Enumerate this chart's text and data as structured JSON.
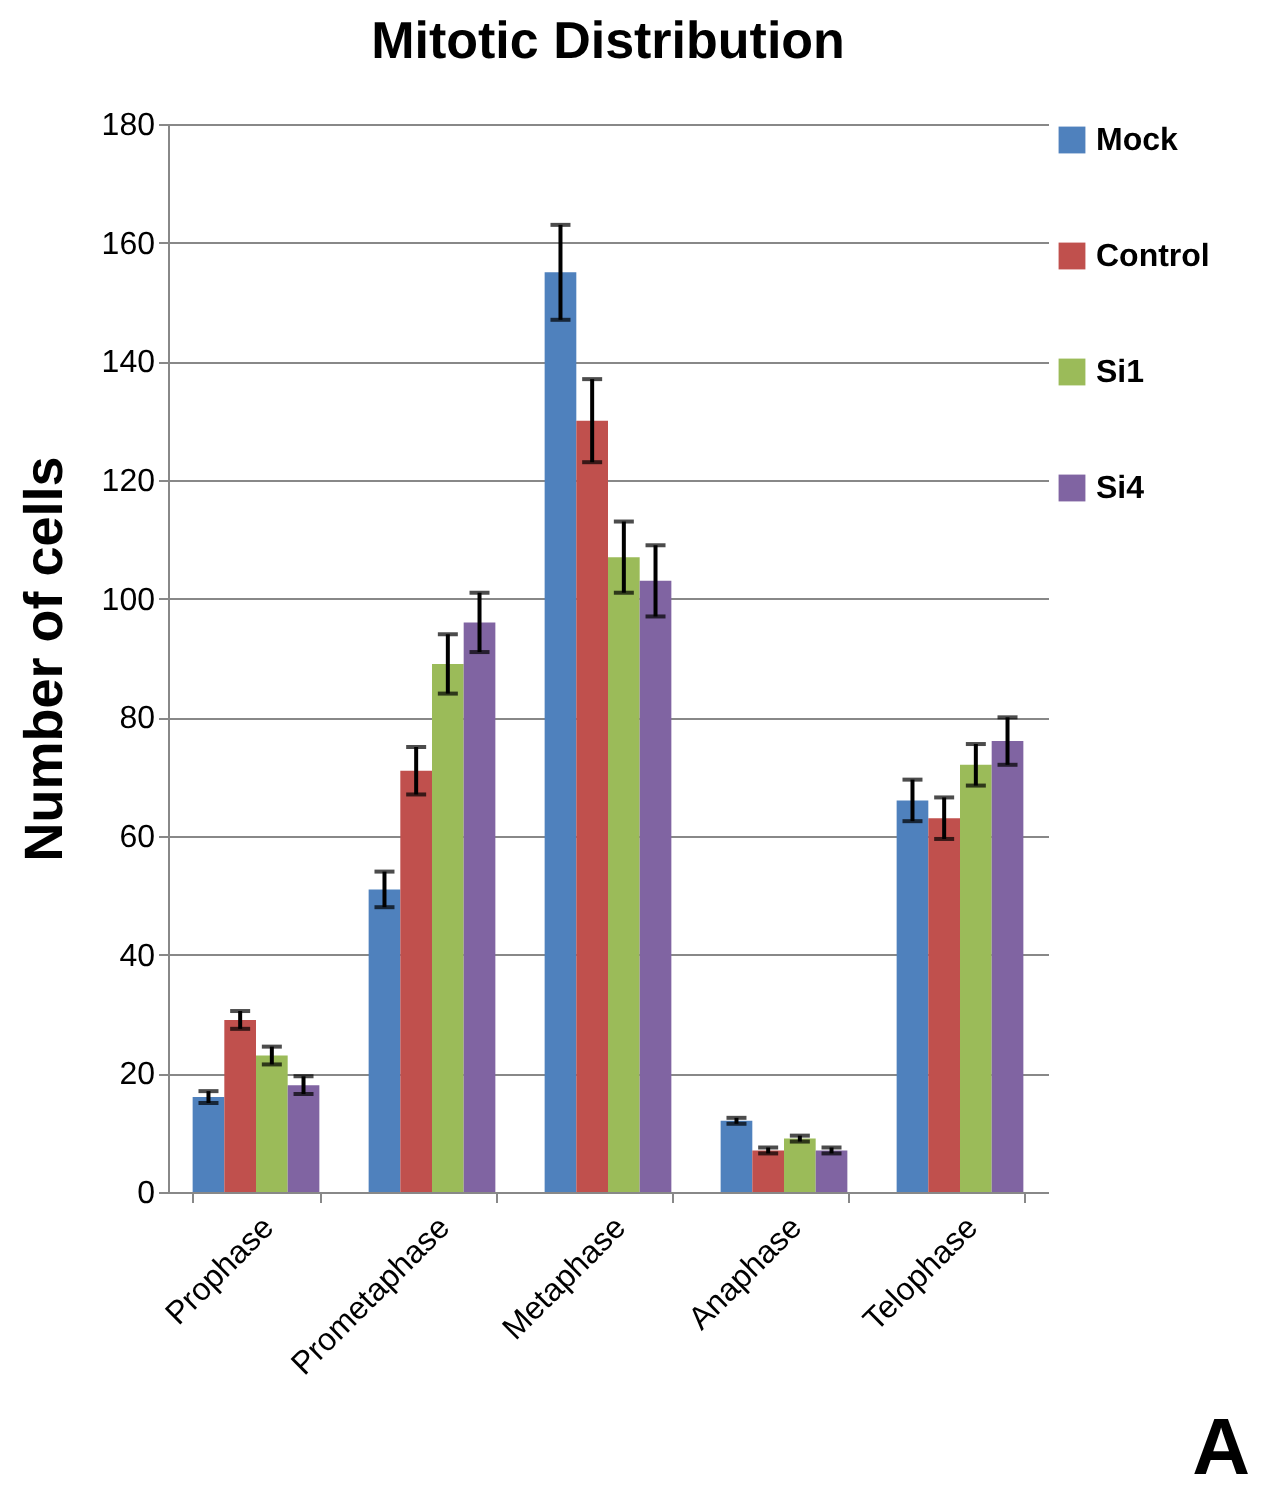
{
  "chart_data": {
    "type": "bar",
    "title": "Mitotic Distribution",
    "ylabel": "Number of cells",
    "categories": [
      "Prophase",
      "Prometaphase",
      "Metaphase",
      "Anaphase",
      "Telophase"
    ],
    "series": [
      {
        "name": "Mock",
        "color": "#4f81bd",
        "values": [
          16,
          51,
          155,
          12,
          66
        ],
        "errors": [
          1,
          3,
          8,
          0.5,
          3.5
        ]
      },
      {
        "name": "Control",
        "color": "#c0504d",
        "values": [
          29,
          71,
          130,
          7,
          63
        ],
        "errors": [
          1.5,
          4,
          7,
          0.5,
          3.5
        ]
      },
      {
        "name": "Si1",
        "color": "#9bbb59",
        "values": [
          23,
          89,
          107,
          9,
          72
        ],
        "errors": [
          1.5,
          5,
          6,
          0.5,
          3.5
        ]
      },
      {
        "name": "Si4",
        "color": "#8064a2",
        "values": [
          18,
          96,
          103,
          7,
          76
        ],
        "errors": [
          1.5,
          5,
          6,
          0.5,
          4
        ]
      }
    ],
    "ylim": [
      0,
      180
    ],
    "yticks": [
      0,
      20,
      40,
      60,
      80,
      100,
      120,
      140,
      160,
      180
    ],
    "grid": "y",
    "legend": "right",
    "annotations": [
      "A"
    ]
  }
}
